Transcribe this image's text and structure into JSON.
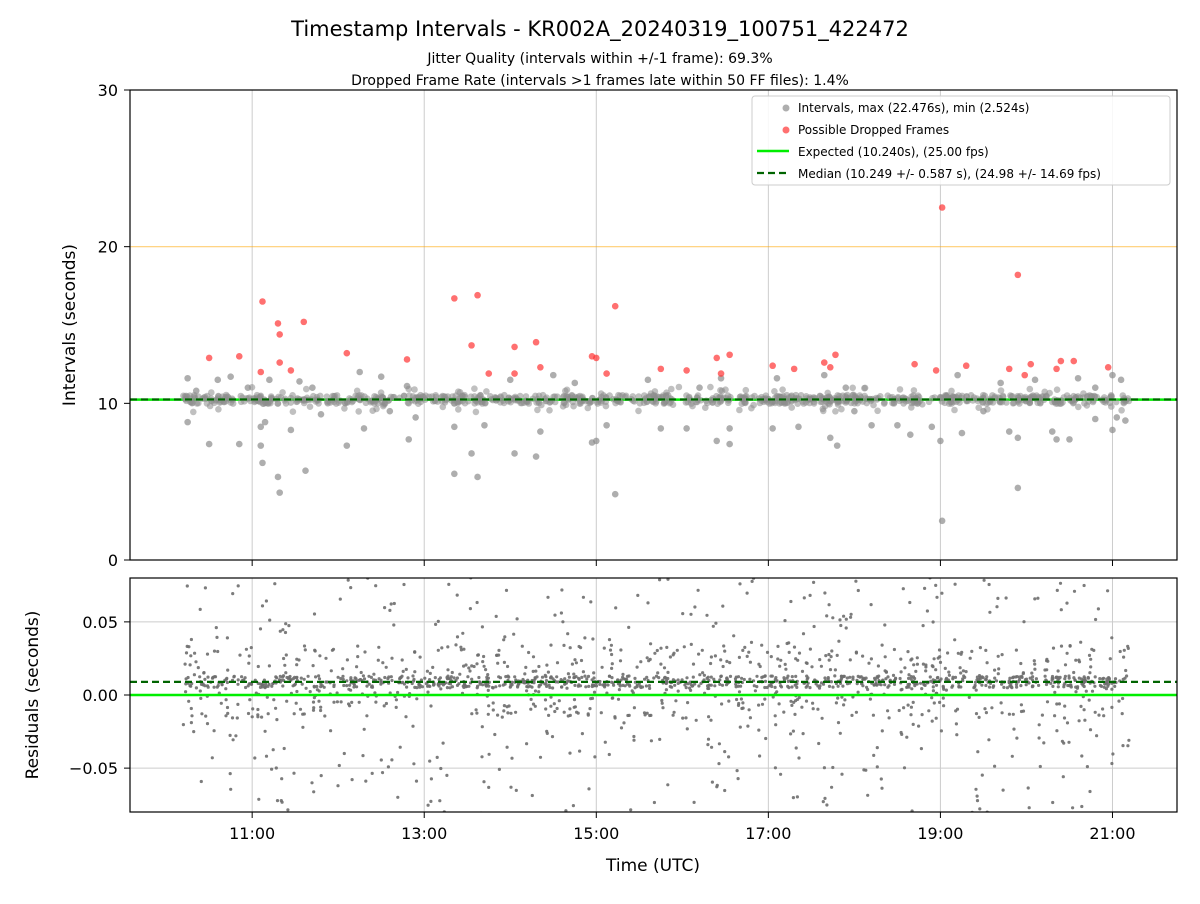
{
  "title": "Timestamp Intervals - KR002A_20240319_100751_422472",
  "subtitle_line1": "Jitter Quality (intervals within +/-1 frame): 69.3%",
  "subtitle_line2": "Dropped Frame Rate (intervals >1 frames late within 50 FF files): 1.4%",
  "colors": {
    "interval_points": "#8c8c8c",
    "dropped_points": "#ff3333",
    "expected_line": "#00ee00",
    "median_line": "#006400",
    "threshold_line": "#ffa500",
    "residual_points": "#6e6e6e",
    "grid": "#cccccc"
  },
  "chart_data": [
    {
      "type": "scatter",
      "ylabel": "Intervals (seconds)",
      "ylim": [
        0,
        30
      ],
      "yticks": [
        "0",
        "10",
        "20",
        "30"
      ],
      "xlim_hours": [
        9.58,
        21.75
      ],
      "grid": "vertical",
      "legend_position": "top-right",
      "legend": [
        "Intervals, max (22.476s), min (2.524s)",
        "Possible Dropped Frames",
        "Expected (10.240s), (25.00 fps)",
        "Median (10.249 +/- 0.587 s), (24.98 +/- 14.69 fps)"
      ],
      "expected": 10.24,
      "median": 10.249,
      "threshold": 20.0,
      "intervals_max": 22.476,
      "intervals_min": 2.524,
      "series": [
        {
          "name": "Intervals, max (22.476s), min (2.524s)",
          "points": [
            [
              10.25,
              11.6
            ],
            [
              10.25,
              8.8
            ],
            [
              10.35,
              10.8
            ],
            [
              10.5,
              7.4
            ],
            [
              10.6,
              11.5
            ],
            [
              10.75,
              11.7
            ],
            [
              10.85,
              7.4
            ],
            [
              10.95,
              11.0
            ],
            [
              11.1,
              8.5
            ],
            [
              11.1,
              7.3
            ],
            [
              11.12,
              6.2
            ],
            [
              11.2,
              11.5
            ],
            [
              11.15,
              8.8
            ],
            [
              11.3,
              5.3
            ],
            [
              11.32,
              4.3
            ],
            [
              11.45,
              8.3
            ],
            [
              11.55,
              11.4
            ],
            [
              11.62,
              5.7
            ],
            [
              11.7,
              11.0
            ],
            [
              11.8,
              9.3
            ],
            [
              12.1,
              7.3
            ],
            [
              12.25,
              12.0
            ],
            [
              12.3,
              8.4
            ],
            [
              12.5,
              11.7
            ],
            [
              12.6,
              9.5
            ],
            [
              12.8,
              11.1
            ],
            [
              12.82,
              7.7
            ],
            [
              12.9,
              9.1
            ],
            [
              13.35,
              5.5
            ],
            [
              13.35,
              8.5
            ],
            [
              13.55,
              6.8
            ],
            [
              13.62,
              5.3
            ],
            [
              13.7,
              8.6
            ],
            [
              14.0,
              11.5
            ],
            [
              14.05,
              6.8
            ],
            [
              14.3,
              6.6
            ],
            [
              14.35,
              8.2
            ],
            [
              14.5,
              11.8
            ],
            [
              14.75,
              11.3
            ],
            [
              14.95,
              7.5
            ],
            [
              15.0,
              7.6
            ],
            [
              15.12,
              8.6
            ],
            [
              15.22,
              4.2
            ],
            [
              15.6,
              11.5
            ],
            [
              15.75,
              8.4
            ],
            [
              16.05,
              8.4
            ],
            [
              16.2,
              11.0
            ],
            [
              16.4,
              7.6
            ],
            [
              16.45,
              11.6
            ],
            [
              16.55,
              7.4
            ],
            [
              16.55,
              8.4
            ],
            [
              17.05,
              8.4
            ],
            [
              17.1,
              11.6
            ],
            [
              17.35,
              8.5
            ],
            [
              17.65,
              11.8
            ],
            [
              17.72,
              7.8
            ],
            [
              17.8,
              7.3
            ],
            [
              17.9,
              11.0
            ],
            [
              18.0,
              9.5
            ],
            [
              18.2,
              8.6
            ],
            [
              18.5,
              8.6
            ],
            [
              18.65,
              8.0
            ],
            [
              18.9,
              8.5
            ],
            [
              19.0,
              7.6
            ],
            [
              19.02,
              2.5
            ],
            [
              19.2,
              11.8
            ],
            [
              19.25,
              8.1
            ],
            [
              19.5,
              9.5
            ],
            [
              19.7,
              11.3
            ],
            [
              19.8,
              8.2
            ],
            [
              19.9,
              4.6
            ],
            [
              19.9,
              7.8
            ],
            [
              20.1,
              11.5
            ],
            [
              20.3,
              8.2
            ],
            [
              20.35,
              7.7
            ],
            [
              20.5,
              7.7
            ],
            [
              20.6,
              11.6
            ],
            [
              20.8,
              11.0
            ],
            [
              20.8,
              9.0
            ],
            [
              21.0,
              8.3
            ],
            [
              21.05,
              9.1
            ],
            [
              21.1,
              11.5
            ],
            [
              21.15,
              8.9
            ],
            [
              21.0,
              11.8
            ]
          ]
        },
        {
          "name": "Possible Dropped Frames",
          "points": [
            [
              10.5,
              12.9
            ],
            [
              10.85,
              13.0
            ],
            [
              11.1,
              12.0
            ],
            [
              11.12,
              16.5
            ],
            [
              11.3,
              15.1
            ],
            [
              11.32,
              14.4
            ],
            [
              11.32,
              12.6
            ],
            [
              11.45,
              12.1
            ],
            [
              11.6,
              15.2
            ],
            [
              12.1,
              13.2
            ],
            [
              12.8,
              12.8
            ],
            [
              13.35,
              16.7
            ],
            [
              13.55,
              13.7
            ],
            [
              13.62,
              16.9
            ],
            [
              13.75,
              11.9
            ],
            [
              14.05,
              13.6
            ],
            [
              14.05,
              11.9
            ],
            [
              14.3,
              13.9
            ],
            [
              14.35,
              12.3
            ],
            [
              14.95,
              13.0
            ],
            [
              15.0,
              12.9
            ],
            [
              15.12,
              11.9
            ],
            [
              15.22,
              16.2
            ],
            [
              15.75,
              12.2
            ],
            [
              16.05,
              12.1
            ],
            [
              16.4,
              12.9
            ],
            [
              16.45,
              11.9
            ],
            [
              16.55,
              13.1
            ],
            [
              17.05,
              12.4
            ],
            [
              17.3,
              12.2
            ],
            [
              17.65,
              12.6
            ],
            [
              17.72,
              12.3
            ],
            [
              17.78,
              13.1
            ],
            [
              18.7,
              12.5
            ],
            [
              18.95,
              12.1
            ],
            [
              19.02,
              22.5
            ],
            [
              19.3,
              12.4
            ],
            [
              19.8,
              12.2
            ],
            [
              19.9,
              18.2
            ],
            [
              19.98,
              11.8
            ],
            [
              20.05,
              12.5
            ],
            [
              20.35,
              12.2
            ],
            [
              20.4,
              12.7
            ],
            [
              20.55,
              12.7
            ],
            [
              20.95,
              12.3
            ]
          ]
        }
      ]
    },
    {
      "type": "scatter",
      "xlabel": "Time (UTC)",
      "ylabel": "Residuals (seconds)",
      "ylim": [
        -0.08,
        0.08
      ],
      "yticks": [
        "−0.05",
        "0.00",
        "0.05"
      ],
      "xticks": [
        "11:00",
        "13:00",
        "15:00",
        "17:00",
        "19:00",
        "21:00"
      ],
      "xlim_hours": [
        9.58,
        21.75
      ],
      "grid": "both",
      "expected_residual": 0.0,
      "median_residual": 0.009,
      "series": [
        {
          "name": "Residuals",
          "distribution": "about 1800 samples between 10:15 and 21:15, clustered near 0.009 s, spread to ±0.08 s"
        }
      ]
    }
  ]
}
